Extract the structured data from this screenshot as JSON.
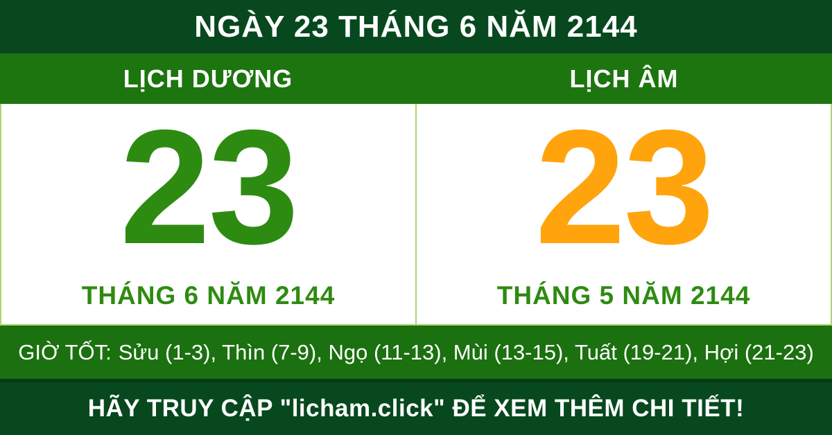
{
  "header": {
    "title": "NGÀY 23 THÁNG 6 NĂM 2144"
  },
  "solar": {
    "header": "LỊCH DƯƠNG",
    "day": "23",
    "month_year": "THÁNG 6 NĂM 2144"
  },
  "lunar": {
    "header": "LỊCH ÂM",
    "day": "23",
    "month_year": "THÁNG 5 NĂM 2144"
  },
  "good_hours": {
    "label": "GIỜ TỐT:",
    "text": "Sửu (1-3), Thìn (7-9), Ngọ (11-13), Mùi (13-15), Tuất (19-21), Hợi (21-23)"
  },
  "footer": {
    "cta": "HÃY TRUY CẬP \"licham.click\" ĐỂ XEM THÊM CHI TIẾT!"
  },
  "theme": {
    "dark-green": "#07481f",
    "band-green": "#1c750e",
    "hours-green": "#1b700f",
    "day-green": "#2e8b12",
    "day-orange": "#ffa40d",
    "divider-green": "#a8d671",
    "separator-green": "#063a19",
    "panel-bg": "#ffffff",
    "text-white": "#ffffff"
  }
}
